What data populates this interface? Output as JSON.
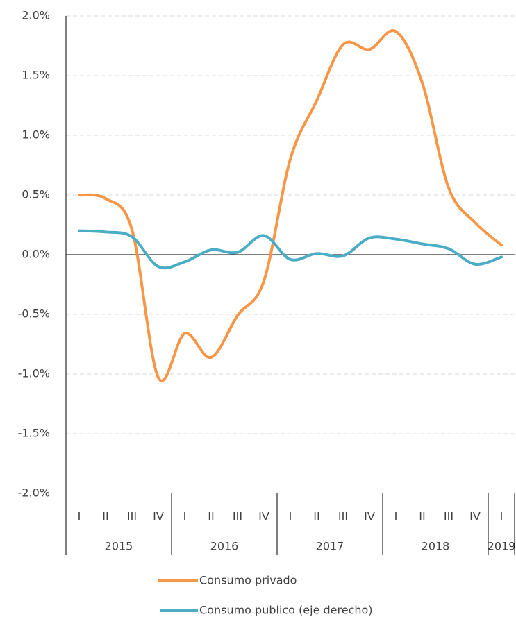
{
  "chart_data": {
    "type": "line",
    "category_groups": [
      {
        "name": "2015",
        "categories": [
          "I",
          "II",
          "III",
          "IV"
        ]
      },
      {
        "name": "2016",
        "categories": [
          "I",
          "II",
          "III",
          "IV"
        ]
      },
      {
        "name": "2017",
        "categories": [
          "I",
          "II",
          "III",
          "IV"
        ]
      },
      {
        "name": "2018",
        "categories": [
          "I",
          "II",
          "III",
          "IV"
        ]
      },
      {
        "name": "2019",
        "categories": [
          "I"
        ]
      }
    ],
    "series": [
      {
        "name": "Consumo privado",
        "color": "#f79646",
        "values": [
          0.5,
          0.47,
          0.21,
          -1.03,
          -0.66,
          -0.86,
          -0.51,
          -0.22,
          0.8,
          1.29,
          1.76,
          1.72,
          1.87,
          1.44,
          0.56,
          0.27,
          0.08
        ]
      },
      {
        "name": "Consumo publico (eje derecho)",
        "color": "#4bacc6",
        "values": [
          0.2,
          0.19,
          0.15,
          -0.1,
          -0.06,
          0.04,
          0.02,
          0.16,
          -0.04,
          0.01,
          -0.01,
          0.14,
          0.13,
          0.09,
          0.05,
          -0.08,
          -0.02
        ]
      }
    ],
    "ylim": [
      -2.0,
      2.0
    ],
    "yticks": [
      {
        "value": -2.0,
        "label": "-2.0%"
      },
      {
        "value": -1.5,
        "label": "-1.5%"
      },
      {
        "value": -1.0,
        "label": "-1.0%"
      },
      {
        "value": -0.5,
        "label": "-0.5%"
      },
      {
        "value": 0.0,
        "label": "0.0%"
      },
      {
        "value": 0.5,
        "label": "0.5%"
      },
      {
        "value": 1.0,
        "label": "1.0%"
      },
      {
        "value": 1.5,
        "label": "1.5%"
      },
      {
        "value": 2.0,
        "label": "2.0%"
      }
    ],
    "grid": true
  }
}
